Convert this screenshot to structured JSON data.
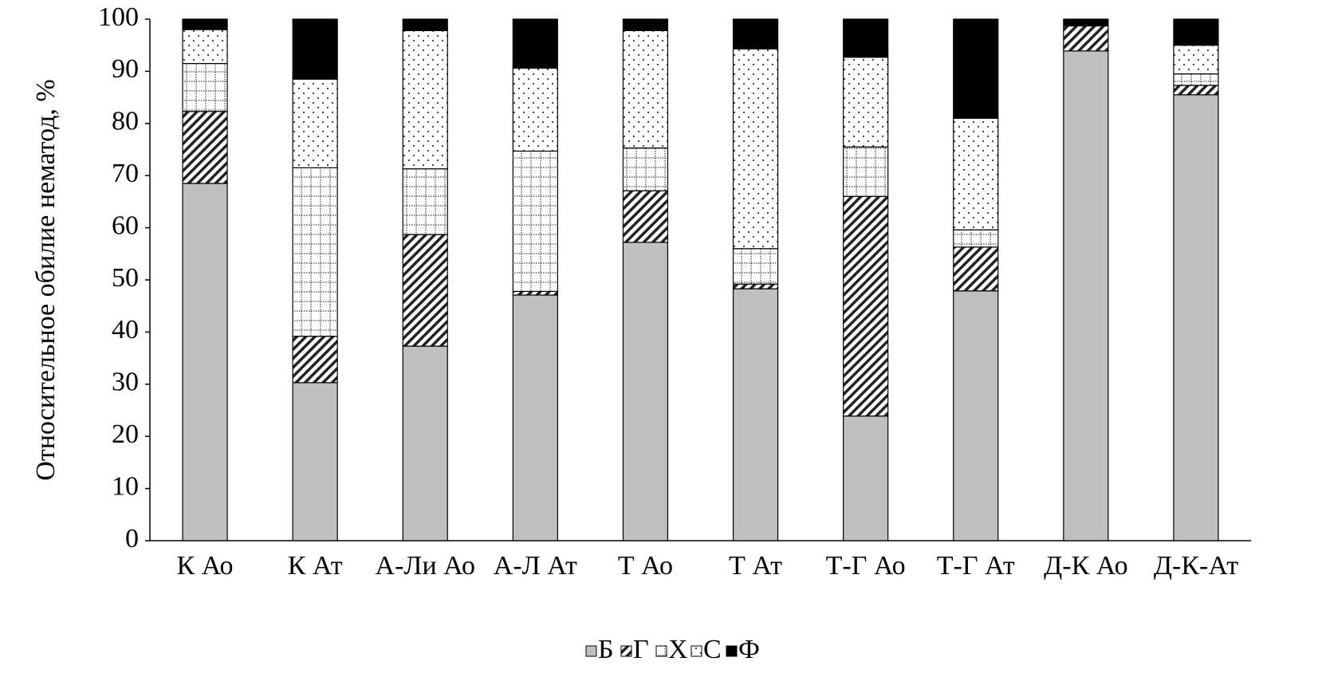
{
  "chart_data": {
    "type": "stacked_bar",
    "y_label": "Относительное обилие нематод, %",
    "categories": [
      "К Ао",
      "К Ат",
      "А-Ли Ао",
      "А-Л Ат",
      "Т Ао",
      "Т Ат",
      "Т-Г Ао",
      "Т-Г Ат",
      "Д-К Ао",
      "Д-К-Ат"
    ],
    "series": [
      {
        "name": "Б",
        "color": "#c0c0c0",
        "pattern": "solid",
        "values": [
          68.5,
          30.3,
          37.3,
          47.1,
          57.2,
          48.3,
          23.9,
          47.9,
          93.9,
          85.5
        ]
      },
      {
        "name": "Г",
        "color": "#ffffff",
        "pattern": "hatch",
        "values": [
          13.8,
          8.9,
          21.4,
          0.7,
          9.9,
          0.9,
          42.1,
          8.4,
          4.8,
          1.8
        ]
      },
      {
        "name": "Х",
        "color": "#ffffff",
        "pattern": "grid",
        "values": [
          9.2,
          32.3,
          12.6,
          26.9,
          8.2,
          6.8,
          9.5,
          3.3,
          0,
          2.2
        ]
      },
      {
        "name": "С",
        "color": "#ffffff",
        "pattern": "dots",
        "values": [
          6.5,
          17.0,
          26.5,
          15.9,
          22.5,
          38.3,
          17.2,
          21.4,
          0,
          5.5
        ]
      },
      {
        "name": "Ф",
        "color": "#000000",
        "pattern": "solid",
        "values": [
          2.0,
          11.5,
          2.2,
          9.4,
          2.2,
          5.7,
          7.3,
          19.0,
          1.3,
          5.0
        ]
      }
    ],
    "ylim": [
      0,
      100
    ],
    "yticks": [
      0,
      10,
      20,
      30,
      40,
      50,
      60,
      70,
      80,
      90,
      100
    ],
    "legend": "bottom",
    "grid": false
  }
}
